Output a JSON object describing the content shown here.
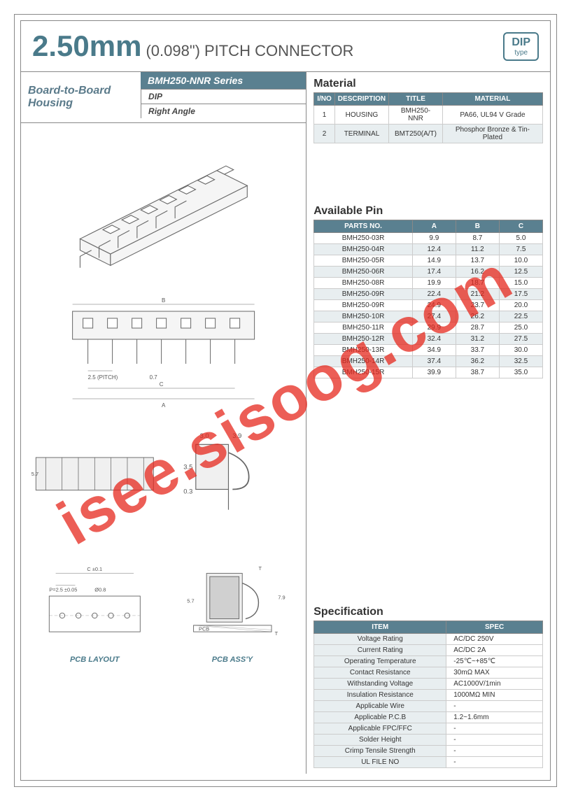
{
  "header": {
    "pitch_size": "2.50mm",
    "pitch_inch": "(0.098\")",
    "pitch_label": "PITCH CONNECTOR",
    "badge_top": "DIP",
    "badge_bottom": "type"
  },
  "product": {
    "title_line1": "Board-to-Board",
    "title_line2": "Housing",
    "series": "BMH250-NNR Series",
    "type": "DIP",
    "angle": "Right Angle"
  },
  "material": {
    "title": "Material",
    "headers": [
      "I/NO",
      "DESCRIPTION",
      "TITLE",
      "MATERIAL"
    ],
    "rows": [
      [
        "1",
        "HOUSING",
        "BMH250-NNR",
        "PA66, UL94 V Grade"
      ],
      [
        "2",
        "TERMINAL",
        "BMT250(A/T)",
        "Phosphor Bronze & Tin-Plated"
      ]
    ]
  },
  "available_pin": {
    "title": "Available Pin",
    "headers": [
      "PARTS NO.",
      "A",
      "B",
      "C"
    ],
    "rows": [
      [
        "BMH250-03R",
        "9.9",
        "8.7",
        "5.0"
      ],
      [
        "BMH250-04R",
        "12.4",
        "11.2",
        "7.5"
      ],
      [
        "BMH250-05R",
        "14.9",
        "13.7",
        "10.0"
      ],
      [
        "BMH250-06R",
        "17.4",
        "16.2",
        "12.5"
      ],
      [
        "BMH250-08R",
        "19.9",
        "18.7",
        "15.0"
      ],
      [
        "BMH250-09R",
        "22.4",
        "21.2",
        "17.5"
      ],
      [
        "BMH250-09R",
        "24.9",
        "23.7",
        "20.0"
      ],
      [
        "BMH250-10R",
        "27.4",
        "26.2",
        "22.5"
      ],
      [
        "BMH250-11R",
        "29.9",
        "28.7",
        "25.0"
      ],
      [
        "BMH250-12R",
        "32.4",
        "31.2",
        "27.5"
      ],
      [
        "BMH250-13R",
        "34.9",
        "33.7",
        "30.0"
      ],
      [
        "BMH250-14R",
        "37.4",
        "36.2",
        "32.5"
      ],
      [
        "BMH250-15R",
        "39.9",
        "38.7",
        "35.0"
      ]
    ]
  },
  "specification": {
    "title": "Specification",
    "headers": [
      "ITEM",
      "SPEC"
    ],
    "rows": [
      [
        "Voltage Rating",
        "AC/DC 250V"
      ],
      [
        "Current Rating",
        "AC/DC 2A"
      ],
      [
        "Operating Temperature",
        "-25℃~+85℃"
      ],
      [
        "Contact Resistance",
        "30mΩ MAX"
      ],
      [
        "Withstanding Voltage",
        "AC1000V/1min"
      ],
      [
        "Insulation Resistance",
        "1000MΩ MIN"
      ],
      [
        "Applicable Wire",
        "-"
      ],
      [
        "Applicable P.C.B",
        "1.2~1.6mm"
      ],
      [
        "Applicable FPC/FFC",
        "-"
      ],
      [
        "Solder Height",
        "-"
      ],
      [
        "Crimp Tensile Strength",
        "-"
      ],
      [
        "UL FILE NO",
        "-"
      ]
    ]
  },
  "drawings": {
    "dim_b": "B",
    "dim_a": "A",
    "dim_c": "C",
    "pitch_label": "2.5 (PITCH)",
    "dim_07": "0.7",
    "dim_30": "3.0",
    "dim_39": "3.9",
    "dim_35": "3.5",
    "dim_03": "0.3",
    "dim_57": "5.7",
    "dim_79": "7.9",
    "dim_t": "T",
    "dim_c01": "C ±0.1",
    "dim_p25": "P=2.5 ±0.05",
    "dim_08": "Ø0.8",
    "pcb_layout": "PCB LAYOUT",
    "pcb_assy": "PCB ASS'Y",
    "pcb_text": "PCB"
  },
  "watermark": "isee.sisoog.com",
  "colors": {
    "teal": "#5a8090",
    "teal_light": "#e8eef0",
    "border": "#888888",
    "watermark_red": "#e6281e"
  }
}
